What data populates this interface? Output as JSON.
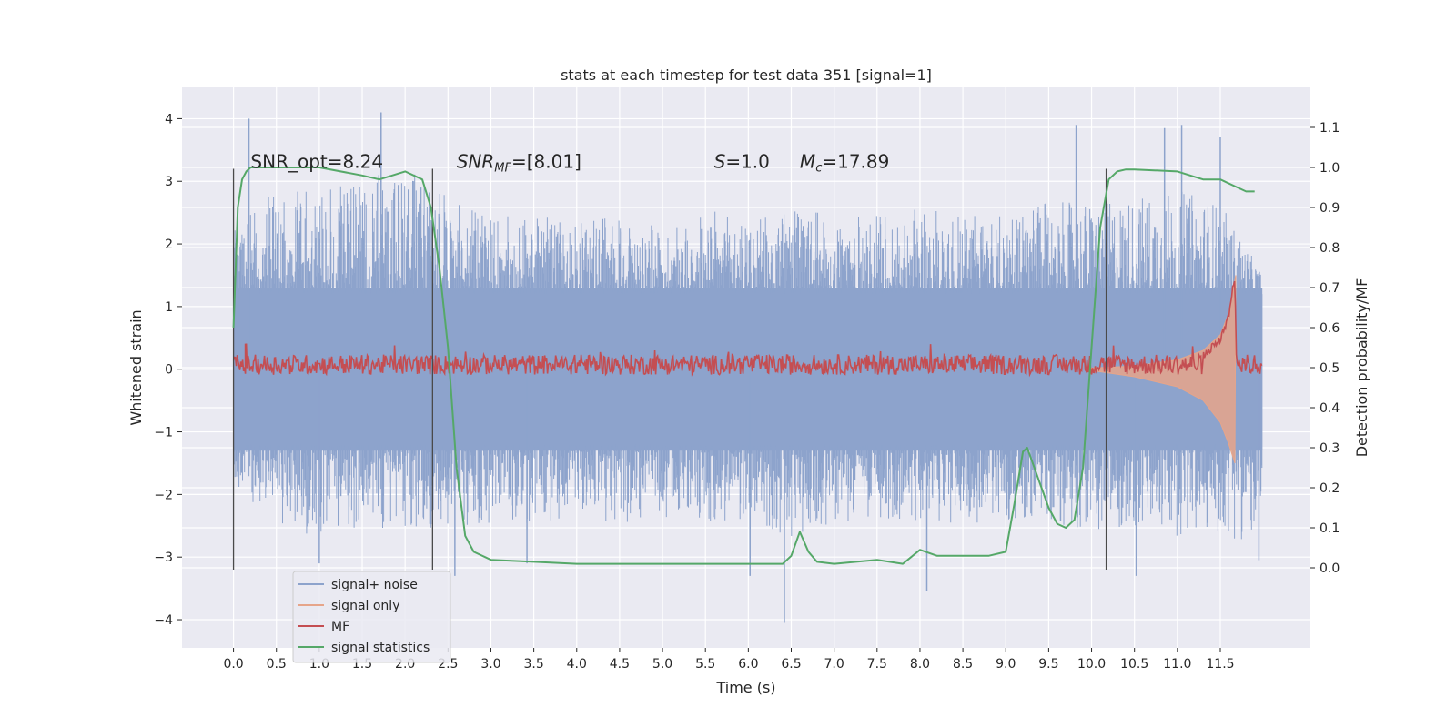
{
  "chart_data": {
    "type": "line",
    "title": "stats at each timestep for test data 351 [signal=1]",
    "xlabel": "Time (s)",
    "ylabel": "Whitened strain",
    "ylabel_right": "Detection probability/MF",
    "xlim": [
      -0.6,
      12.55
    ],
    "ylim": [
      -4.45,
      4.5
    ],
    "ylim_right": [
      -0.2,
      1.2
    ],
    "x_ticks": [
      "0.0",
      "0.5",
      "1.0",
      "1.5",
      "2.0",
      "2.5",
      "3.0",
      "3.5",
      "4.0",
      "4.5",
      "5.0",
      "5.5",
      "6.0",
      "6.5",
      "7.0",
      "7.5",
      "8.0",
      "8.5",
      "9.0",
      "9.5",
      "10.0",
      "10.5",
      "11.0",
      "11.5"
    ],
    "y_ticks": [
      "4",
      "3",
      "2",
      "1",
      "0",
      "−1",
      "−2",
      "−3",
      "−4"
    ],
    "y_ticks_right": [
      "1.1",
      "1.0",
      "0.9",
      "0.8",
      "0.7",
      "0.6",
      "0.5",
      "0.4",
      "0.3",
      "0.2",
      "0.1",
      "0.0"
    ],
    "grid": true,
    "legend_position": "lower-left",
    "annotations": [
      {
        "id": "snr-opt",
        "text": "SNR_opt=8.24",
        "x": 0.2,
        "y": 3.2
      },
      {
        "id": "snr-mf",
        "text": "SNRMF=[8.01]",
        "x": 2.6,
        "y": 3.2
      },
      {
        "id": "s-val",
        "text": "S=1.0",
        "x": 5.6,
        "y": 3.2
      },
      {
        "id": "mc-val",
        "text": "Mc=17.89",
        "x": 6.6,
        "y": 3.2
      }
    ],
    "vlines": [
      {
        "x": 0.0,
        "ymin": -3.2,
        "ymax": 3.2
      },
      {
        "x": 2.32,
        "ymin": -3.2,
        "ymax": 3.2
      },
      {
        "x": 10.17,
        "ymin": -3.2,
        "ymax": 3.2
      }
    ],
    "series": [
      {
        "name": "signal+ noise",
        "color": "#8da3cc",
        "x_range": [
          0.0,
          11.99
        ],
        "envelope_upper": [
          [
            0.0,
            2.2
          ],
          [
            0.5,
            2.9
          ],
          [
            1.0,
            2.8
          ],
          [
            1.5,
            2.9
          ],
          [
            2.0,
            3.2
          ],
          [
            2.5,
            2.7
          ],
          [
            3.0,
            2.4
          ],
          [
            3.5,
            2.4
          ],
          [
            4.0,
            2.3
          ],
          [
            4.5,
            2.4
          ],
          [
            5.0,
            2.2
          ],
          [
            5.5,
            2.5
          ],
          [
            6.0,
            2.3
          ],
          [
            6.5,
            2.5
          ],
          [
            7.0,
            2.4
          ],
          [
            7.5,
            2.4
          ],
          [
            8.0,
            2.5
          ],
          [
            8.5,
            2.5
          ],
          [
            9.0,
            2.4
          ],
          [
            9.5,
            2.6
          ],
          [
            10.0,
            2.6
          ],
          [
            10.5,
            2.7
          ],
          [
            11.0,
            2.8
          ],
          [
            11.5,
            2.6
          ],
          [
            11.99,
            1.5
          ]
        ],
        "envelope_lower": [
          [
            0.0,
            -2.0
          ],
          [
            0.5,
            -2.5
          ],
          [
            1.0,
            -2.6
          ],
          [
            1.5,
            -2.5
          ],
          [
            2.0,
            -2.5
          ],
          [
            2.5,
            -2.5
          ],
          [
            3.0,
            -2.4
          ],
          [
            3.5,
            -2.4
          ],
          [
            4.0,
            -2.3
          ],
          [
            4.5,
            -2.4
          ],
          [
            5.0,
            -2.3
          ],
          [
            5.5,
            -2.4
          ],
          [
            6.0,
            -2.4
          ],
          [
            6.5,
            -2.6
          ],
          [
            7.0,
            -2.4
          ],
          [
            7.5,
            -2.3
          ],
          [
            8.0,
            -2.4
          ],
          [
            8.5,
            -2.4
          ],
          [
            9.0,
            -2.4
          ],
          [
            9.5,
            -2.4
          ],
          [
            10.0,
            -2.5
          ],
          [
            10.5,
            -2.5
          ],
          [
            11.0,
            -2.6
          ],
          [
            11.5,
            -2.6
          ],
          [
            11.99,
            -2.7
          ]
        ],
        "spikes": [
          [
            0.18,
            4.0
          ],
          [
            1.72,
            4.1
          ],
          [
            9.82,
            3.9
          ],
          [
            11.05,
            3.9
          ],
          [
            10.85,
            3.85
          ],
          [
            11.5,
            3.7
          ],
          [
            6.42,
            -4.05
          ],
          [
            8.08,
            -3.55
          ],
          [
            6.02,
            -3.3
          ],
          [
            10.52,
            -3.3
          ],
          [
            2.58,
            -3.3
          ],
          [
            1.0,
            -3.1
          ],
          [
            11.95,
            -3.05
          ],
          [
            3.42,
            -3.1
          ]
        ]
      },
      {
        "name": "signal only",
        "color": "#e6a58a",
        "points": [
          [
            10.0,
            -0.02
          ],
          [
            10.5,
            -0.12
          ],
          [
            11.0,
            -0.28
          ],
          [
            11.3,
            -0.5
          ],
          [
            11.5,
            -0.85
          ],
          [
            11.6,
            -1.2
          ],
          [
            11.67,
            -1.5
          ],
          [
            11.68,
            1.5
          ],
          [
            11.6,
            0.9
          ],
          [
            11.5,
            0.55
          ],
          [
            11.3,
            0.3
          ],
          [
            11.0,
            0.15
          ],
          [
            10.5,
            0.05
          ],
          [
            10.0,
            0.02
          ]
        ]
      },
      {
        "name": "MF",
        "color": "#c44e52",
        "baseline": 0.5,
        "band": 0.025,
        "tail": [
          [
            11.3,
            0.53
          ],
          [
            11.5,
            0.57
          ],
          [
            11.6,
            0.63
          ],
          [
            11.67,
            0.73
          ],
          [
            11.69,
            0.5
          ]
        ]
      },
      {
        "name": "signal statistics",
        "color": "#55a868",
        "x": [
          0.0,
          0.05,
          0.1,
          0.15,
          0.2,
          0.3,
          0.5,
          1.0,
          1.5,
          1.7,
          2.0,
          2.2,
          2.3,
          2.4,
          2.45,
          2.5,
          2.55,
          2.6,
          2.7,
          2.8,
          3.0,
          3.5,
          4.0,
          4.5,
          5.0,
          5.5,
          6.0,
          6.4,
          6.5,
          6.6,
          6.7,
          6.8,
          7.0,
          7.5,
          7.8,
          8.0,
          8.2,
          8.5,
          8.8,
          9.0,
          9.1,
          9.2,
          9.25,
          9.3,
          9.5,
          9.6,
          9.7,
          9.8,
          9.9,
          10.0,
          10.1,
          10.2,
          10.3,
          10.4,
          10.5,
          11.0,
          11.3,
          11.5,
          11.7,
          11.8,
          11.9
        ],
        "y": [
          0.6,
          0.9,
          0.97,
          0.99,
          1.0,
          1.0,
          1.0,
          1.0,
          0.98,
          0.97,
          0.99,
          0.97,
          0.9,
          0.75,
          0.65,
          0.55,
          0.4,
          0.25,
          0.08,
          0.04,
          0.02,
          0.015,
          0.01,
          0.01,
          0.01,
          0.01,
          0.01,
          0.01,
          0.03,
          0.09,
          0.04,
          0.015,
          0.01,
          0.02,
          0.01,
          0.045,
          0.03,
          0.03,
          0.03,
          0.04,
          0.16,
          0.29,
          0.3,
          0.27,
          0.15,
          0.11,
          0.1,
          0.12,
          0.25,
          0.55,
          0.85,
          0.97,
          0.99,
          0.995,
          0.995,
          0.99,
          0.97,
          0.97,
          0.95,
          0.94,
          0.94
        ]
      }
    ]
  }
}
